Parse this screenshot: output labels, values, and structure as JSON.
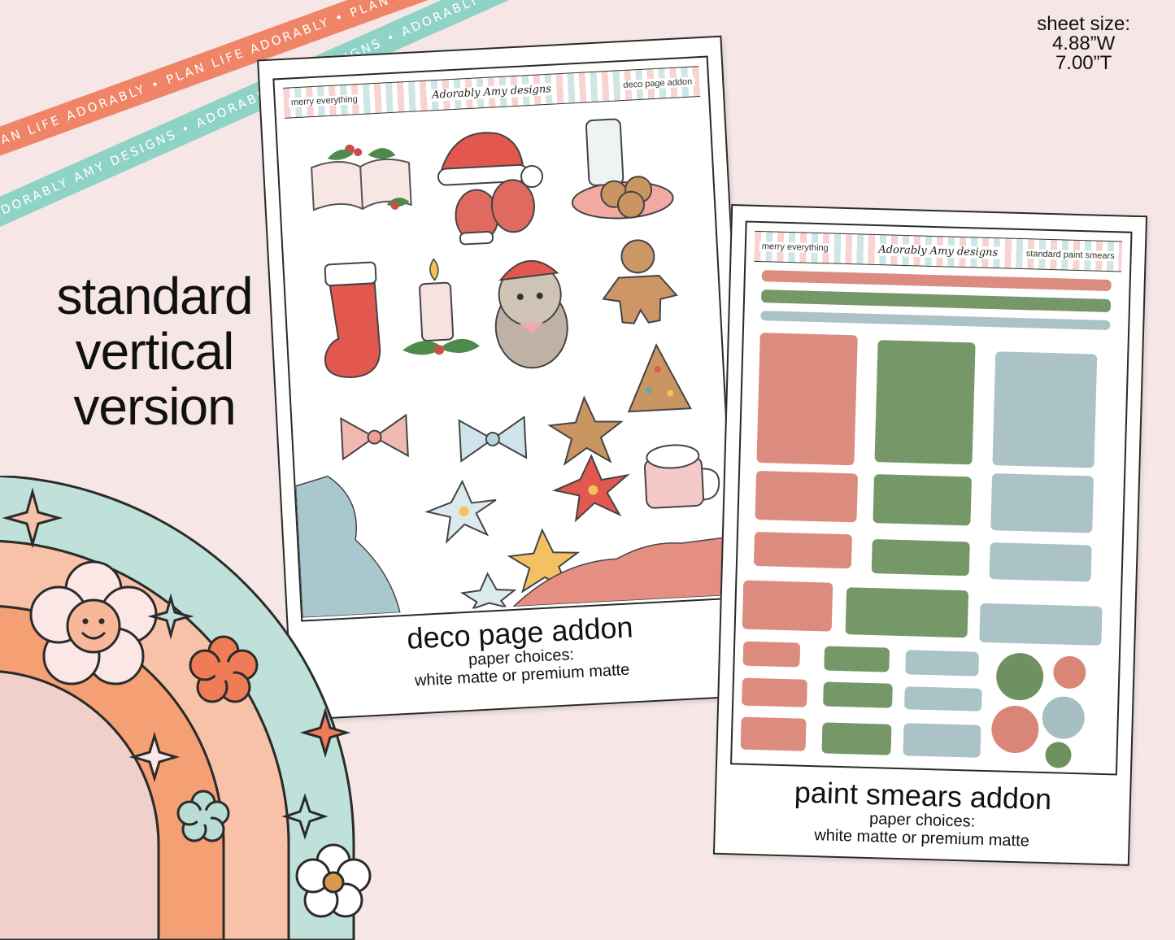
{
  "ribbons": {
    "orange_text": "PLAN LIFE ADORABLY • PLAN LIFE ADORABLY • PLAN LIFE ADORABLY • PLAN LIFE ADORABLY •",
    "teal_text": "ADORABLY AMY DESIGNS • ADORABLY AMY DESIGNS • ADORABLY AMY DESIGNS • ADORABLY AMY DESIGNS •"
  },
  "sheet_size": {
    "label": "sheet size:",
    "width": "4.88”W",
    "height": "7.00”T"
  },
  "version_heading": {
    "line1": "standard",
    "line2": "vertical",
    "line3": "version"
  },
  "deco_sheet": {
    "header_left": "merry everything",
    "header_logo": "Adorably Amy designs",
    "header_right": "deco page addon",
    "title": "deco page addon",
    "paper_label": "paper choices:",
    "paper_options": "white matte or premium matte"
  },
  "paint_sheet": {
    "header_left": "merry everything",
    "header_logo": "Adorably Amy designs",
    "header_right": "standard paint smears",
    "title": "paint smears addon",
    "paper_label": "paper choices:",
    "paper_options": "white matte or premium matte"
  },
  "colors": {
    "background": "#f6e6e6",
    "ribbon_orange": "#f08466",
    "ribbon_teal": "#8fd3c7",
    "smear_red": "#d98677",
    "smear_green": "#6f9160",
    "smear_blue": "#a7bfc3"
  }
}
